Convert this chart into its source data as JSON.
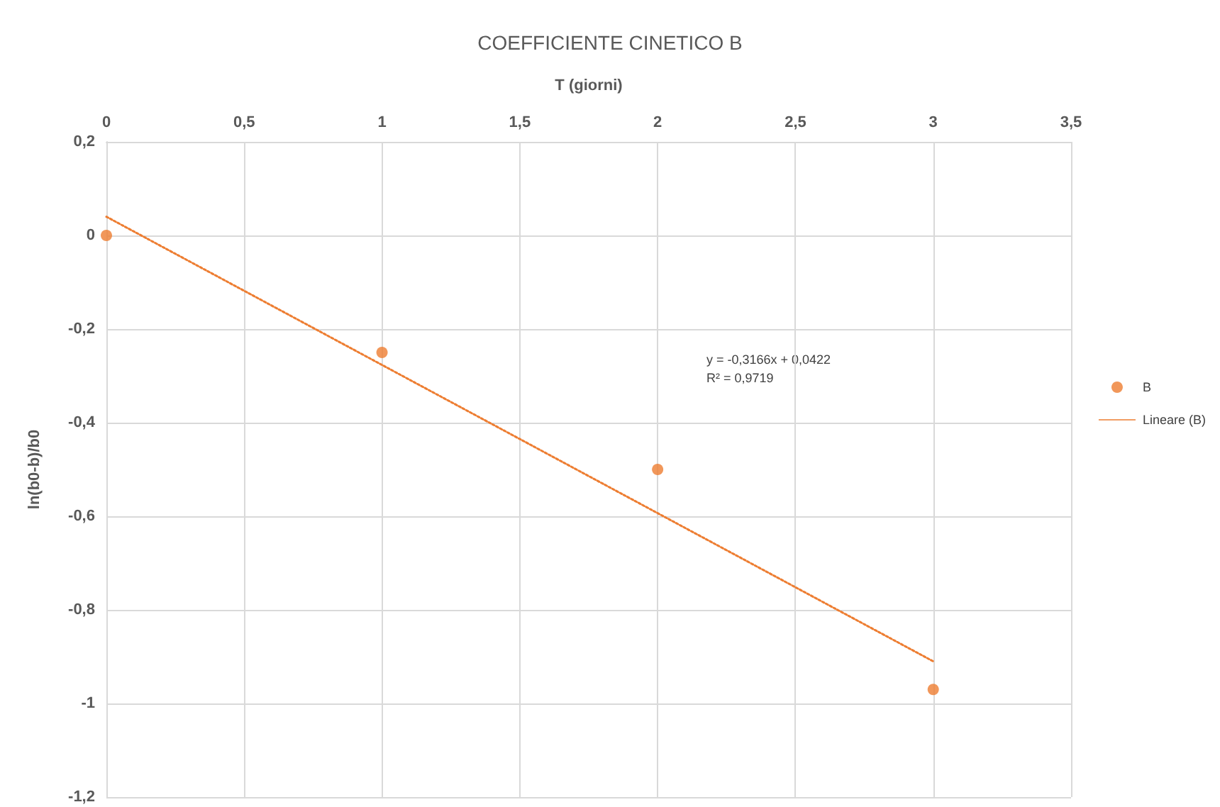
{
  "chart_data": {
    "type": "scatter",
    "title": "COEFFICIENTE CINETICO B",
    "xlabel": "T (giorni)",
    "ylabel": "ln(b0-b)/b0",
    "xlim": [
      0,
      3.5
    ],
    "ylim": [
      -1.2,
      0.2
    ],
    "xticks": [
      0,
      {
        "value": 0.5,
        "label": "0,5"
      },
      1,
      {
        "value": 1.5,
        "label": "1,5"
      },
      2,
      {
        "value": 2.5,
        "label": "2,5"
      },
      3,
      {
        "value": 3.5,
        "label": "3,5"
      }
    ],
    "yticks": [
      {
        "value": -1.2,
        "label": "-1,2"
      },
      -1,
      {
        "value": -0.8,
        "label": "-0,8"
      },
      {
        "value": -0.6,
        "label": "-0,6"
      },
      {
        "value": -0.4,
        "label": "-0,4"
      },
      {
        "value": -0.2,
        "label": "-0,2"
      },
      0,
      {
        "value": 0.2,
        "label": "0,2"
      }
    ],
    "grid": true,
    "legend": "right",
    "series": [
      {
        "name": "B",
        "color": "#ed7d31",
        "marker": "circle",
        "x": [
          0,
          1,
          2,
          3
        ],
        "values": [
          0,
          -0.25,
          -0.5,
          -0.97
        ]
      },
      {
        "name": "Lineare (B)",
        "type": "line",
        "color": "#ed7d31",
        "marker": "none",
        "line_style": "dotted",
        "x": [
          0,
          3
        ],
        "values": [
          0.04,
          -0.91
        ]
      }
    ],
    "annotations": [
      "y = -0,3166x + 0,0422",
      "R² = 0,9719"
    ]
  }
}
